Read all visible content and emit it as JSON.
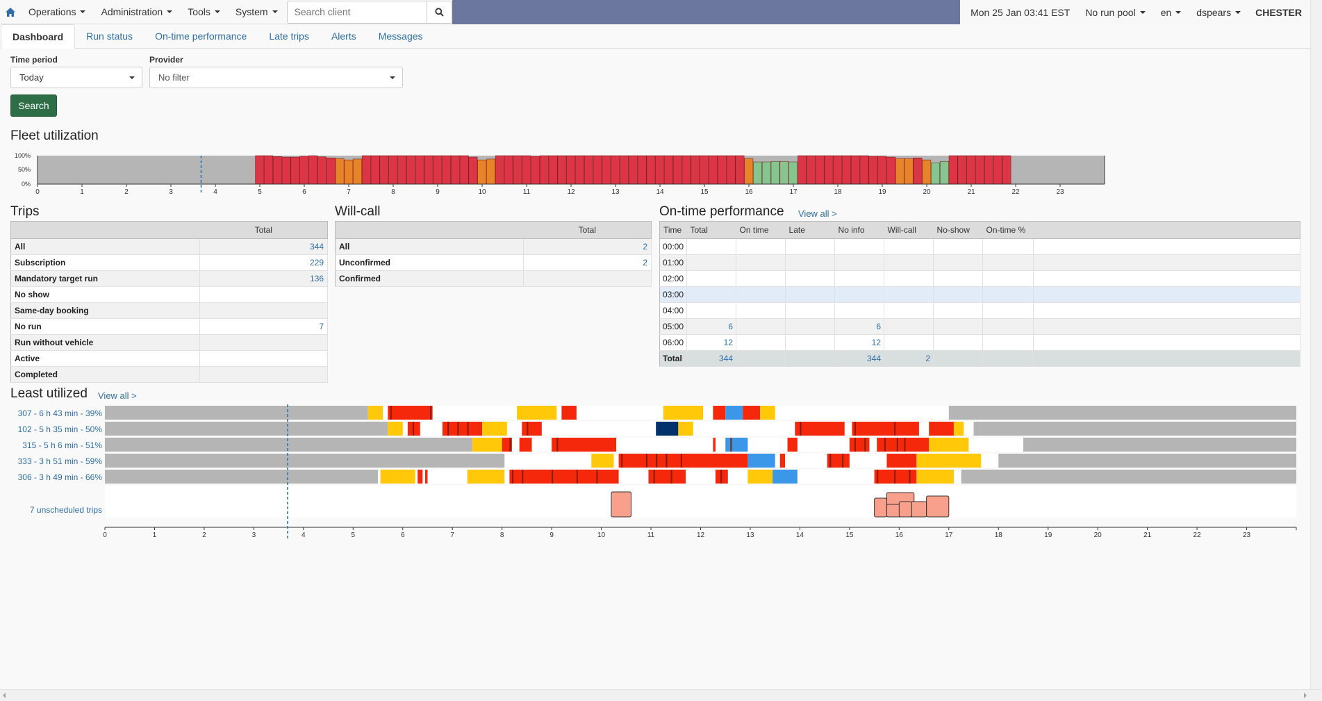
{
  "nav": {
    "menus": [
      "Operations",
      "Administration",
      "Tools",
      "System"
    ],
    "search_placeholder": "Search client",
    "datetime": "Mon 25 Jan 03:41 EST",
    "run_pool": "No run pool",
    "lang": "en",
    "user": "dspears",
    "site": "CHESTER"
  },
  "tabs": [
    "Dashboard",
    "Run status",
    "On-time performance",
    "Late trips",
    "Alerts",
    "Messages"
  ],
  "filters": {
    "time_period_label": "Time period",
    "time_period_value": "Today",
    "provider_label": "Provider",
    "provider_value": "No filter",
    "search_button": "Search"
  },
  "fleet": {
    "title": "Fleet utilization",
    "y_ticks": [
      "100%",
      "50%",
      "0%"
    ],
    "x_ticks": [
      "0",
      "1",
      "2",
      "3",
      "4",
      "5",
      "6",
      "7",
      "8",
      "9",
      "10",
      "11",
      "12",
      "13",
      "14",
      "15",
      "16",
      "17",
      "18",
      "19",
      "20",
      "21",
      "22",
      "23"
    ],
    "current_hour": 3.68
  },
  "trips": {
    "title": "Trips",
    "header": "Total",
    "rows": [
      {
        "label": "All",
        "value": "344"
      },
      {
        "label": "Subscription",
        "value": "229"
      },
      {
        "label": "Mandatory target run",
        "value": "136"
      },
      {
        "label": "No show",
        "value": ""
      },
      {
        "label": "Same-day booking",
        "value": ""
      },
      {
        "label": "No run",
        "value": "7"
      },
      {
        "label": "Run without vehicle",
        "value": ""
      },
      {
        "label": "Active",
        "value": ""
      },
      {
        "label": "Completed",
        "value": ""
      }
    ]
  },
  "willcall": {
    "title": "Will-call",
    "header": "Total",
    "rows": [
      {
        "label": "All",
        "value": "2"
      },
      {
        "label": "Unconfirmed",
        "value": "2"
      },
      {
        "label": "Confirmed",
        "value": ""
      }
    ]
  },
  "otp": {
    "title": "On-time performance",
    "view_all": "View all >",
    "headers": [
      "Time",
      "Total",
      "On time",
      "Late",
      "No info",
      "Will-call",
      "No-show",
      "On-time %"
    ],
    "rows": [
      [
        "00:00",
        "",
        "",
        "",
        "",
        "",
        "",
        ""
      ],
      [
        "01:00",
        "",
        "",
        "",
        "",
        "",
        "",
        ""
      ],
      [
        "02:00",
        "",
        "",
        "",
        "",
        "",
        "",
        ""
      ],
      [
        "03:00",
        "",
        "",
        "",
        "",
        "",
        "",
        ""
      ],
      [
        "04:00",
        "",
        "",
        "",
        "",
        "",
        "",
        ""
      ],
      [
        "05:00",
        "6",
        "",
        "",
        "6",
        "",
        "",
        ""
      ],
      [
        "06:00",
        "12",
        "",
        "",
        "12",
        "",
        "",
        ""
      ]
    ],
    "total": [
      "Total",
      "344",
      "",
      "",
      "344",
      "2",
      "",
      ""
    ]
  },
  "least": {
    "title": "Least utilized",
    "view_all": "View all >",
    "runs": [
      "307 - 6 h 43 min - 39%",
      "102 - 5 h 35 min - 50%",
      "315 - 5 h 6 min - 51%",
      "333 - 3 h 51 min - 59%",
      "306 - 3 h 49 min - 66%"
    ],
    "unscheduled": "7 unscheduled trips"
  },
  "colors": {
    "red": "#dc3545",
    "orange": "#e8832a",
    "green": "#86c58e",
    "gray": "#b5b5b5",
    "trip_red": "#f5280b",
    "trip_yellow": "#ffc809",
    "trip_blue": "#3c97e8",
    "trip_navy": "#03316a",
    "salmon": "#f9a08c"
  },
  "chart_data": {
    "type": "bar",
    "title": "Fleet utilization",
    "xlabel": "",
    "ylabel": "",
    "ylim": [
      0,
      100
    ],
    "hours_start": 4.9,
    "bin_width": 0.2,
    "values": [
      100,
      100,
      97,
      95,
      95,
      98,
      100,
      96,
      92,
      90,
      85,
      88,
      100,
      100,
      100,
      100,
      100,
      100,
      100,
      100,
      100,
      100,
      100,
      100,
      95,
      85,
      88,
      100,
      100,
      100,
      100,
      98,
      100,
      100,
      100,
      100,
      100,
      100,
      100,
      100,
      100,
      100,
      100,
      100,
      100,
      100,
      100,
      100,
      100,
      100,
      100,
      100,
      100,
      100,
      100,
      90,
      78,
      78,
      80,
      80,
      78,
      100,
      100,
      100,
      100,
      100,
      100,
      100,
      100,
      98,
      98,
      95,
      90,
      90,
      92,
      85,
      75,
      80,
      100,
      100,
      100,
      100,
      100,
      100,
      100
    ]
  }
}
